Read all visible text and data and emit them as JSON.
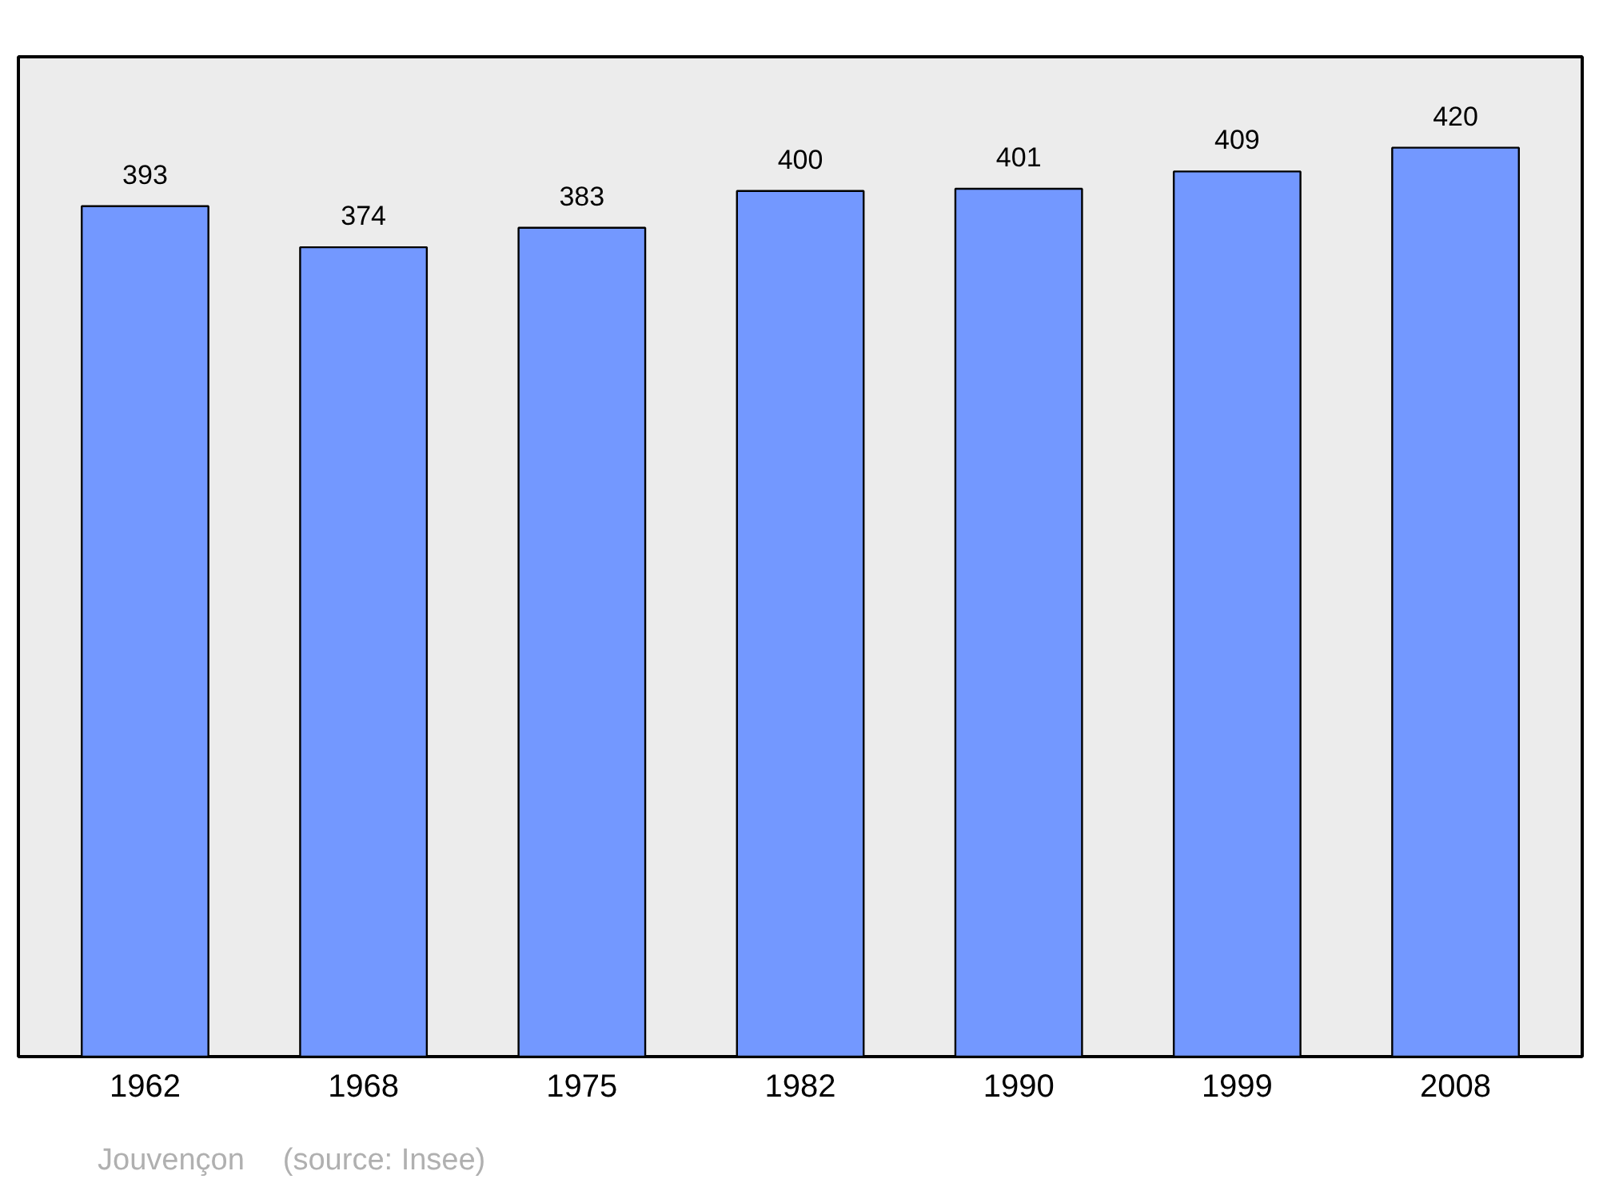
{
  "chart_data": {
    "type": "bar",
    "categories": [
      "1962",
      "1968",
      "1975",
      "1982",
      "1990",
      "1999",
      "2008"
    ],
    "values": [
      393,
      374,
      383,
      400,
      401,
      409,
      420
    ],
    "color": "#7398ff",
    "data_labels": true,
    "grid": false,
    "tick_labels": "x",
    "annotations": [
      "Jouvençon",
      "(source: Insee)"
    ]
  }
}
